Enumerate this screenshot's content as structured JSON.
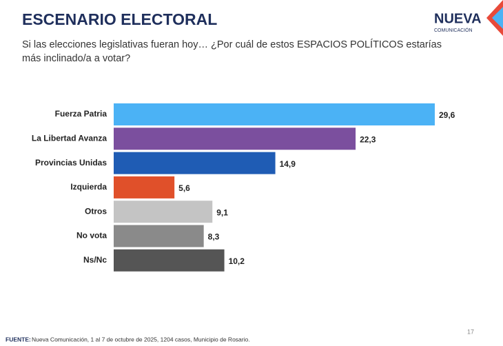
{
  "header": {
    "title": "ESCENARIO ELECTORAL",
    "logo": "NUEVA",
    "logo_sub": "COMUNICACIÓN"
  },
  "chart_data": {
    "type": "bar",
    "orientation": "horizontal",
    "title": "Si las elecciones legislativas fueran hoy… ¿Por cuál de estos ESPACIOS POLÍTICOS estarías más inclinado/a a votar?",
    "categories": [
      "Fuerza Patria",
      "La Libertad Avanza",
      "Provincias Unidas",
      "Izquierda",
      "Otros",
      "No vota",
      "Ns/Nc"
    ],
    "values": [
      29.6,
      22.3,
      14.9,
      5.6,
      9.1,
      8.3,
      10.2
    ],
    "value_labels": [
      "29,6",
      "22,3",
      "14,9",
      "5,6",
      "9,1",
      "8,3",
      "10,2"
    ],
    "colors": [
      "#4bb2f5",
      "#7b4f9e",
      "#1f5cb4",
      "#e0502a",
      "#c4c4c4",
      "#8a8a8a",
      "#555555"
    ]
  },
  "footer": {
    "source_label": "FUENTE:",
    "source_text": "Nueva Comunicación, 1 al 7 de octubre de 2025, 1204 casos, Municipio de Rosario.",
    "page": "17"
  }
}
